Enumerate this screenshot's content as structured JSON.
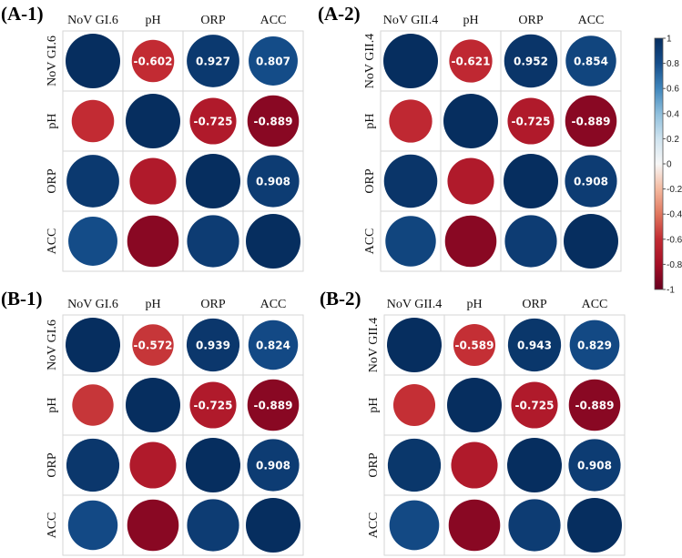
{
  "chart_data": [
    {
      "type": "heatmap",
      "panel_label": "(A-1)",
      "variables": [
        "NoV GI.6",
        "pH",
        "ORP",
        "ACC"
      ],
      "matrix": [
        [
          1,
          -0.602,
          0.927,
          0.807
        ],
        [
          -0.602,
          1,
          -0.725,
          -0.889
        ],
        [
          0.927,
          -0.725,
          1,
          0.908
        ],
        [
          0.807,
          -0.889,
          0.908,
          1
        ]
      ],
      "labels_shown": "upper-triangle"
    },
    {
      "type": "heatmap",
      "panel_label": "(A-2)",
      "variables": [
        "NoV GII.4",
        "pH",
        "ORP",
        "ACC"
      ],
      "matrix": [
        [
          1,
          -0.621,
          0.952,
          0.854
        ],
        [
          -0.621,
          1,
          -0.725,
          -0.889
        ],
        [
          0.952,
          -0.725,
          1,
          0.908
        ],
        [
          0.854,
          -0.889,
          0.908,
          1
        ]
      ],
      "labels_shown": "upper-triangle"
    },
    {
      "type": "heatmap",
      "panel_label": "(B-1)",
      "variables": [
        "NoV GI.6",
        "pH",
        "ORP",
        "ACC"
      ],
      "matrix": [
        [
          1,
          -0.572,
          0.939,
          0.824
        ],
        [
          -0.572,
          1,
          -0.725,
          -0.889
        ],
        [
          0.939,
          -0.725,
          1,
          0.908
        ],
        [
          0.824,
          -0.889,
          0.908,
          1
        ]
      ],
      "labels_shown": "upper-triangle"
    },
    {
      "type": "heatmap",
      "panel_label": "(B-2)",
      "variables": [
        "NoV GII.4",
        "pH",
        "ORP",
        "ACC"
      ],
      "matrix": [
        [
          1,
          -0.589,
          0.943,
          0.829
        ],
        [
          -0.589,
          1,
          -0.725,
          -0.889
        ],
        [
          0.943,
          -0.725,
          1,
          0.908
        ],
        [
          0.829,
          -0.889,
          0.908,
          1
        ]
      ],
      "labels_shown": "upper-triangle"
    }
  ],
  "colorbar": {
    "range": [
      -1,
      1
    ],
    "ticks": [
      "1",
      "0.8",
      "0.6",
      "0.4",
      "0.2",
      "0",
      "-0.2",
      "-0.4",
      "-0.6",
      "-0.8",
      "-1"
    ],
    "tick_values": [
      1,
      0.8,
      0.6,
      0.4,
      0.2,
      0,
      -0.2,
      -0.4,
      -0.6,
      -0.8,
      -1
    ],
    "colors": [
      "#67001f",
      "#a50f26",
      "#c22b33",
      "#e0765e",
      "#f4b99f",
      "#f7f7f7",
      "#cfe3ef",
      "#8fbfdc",
      "#3f86bc",
      "#154d8a",
      "#062e5f"
    ]
  }
}
